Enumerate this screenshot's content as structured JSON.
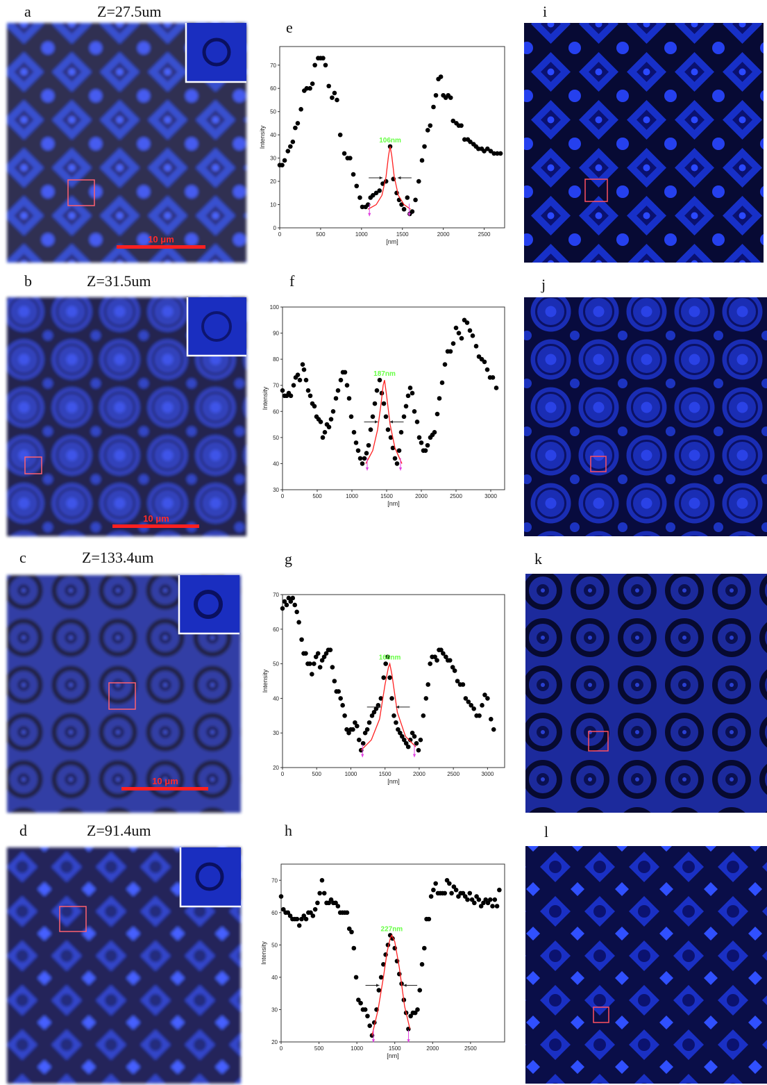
{
  "image_panels": [
    {
      "label": "a",
      "z": "Z=27.5um",
      "scale_bar": "10 μm"
    },
    {
      "label": "b",
      "z": "Z=31.5um",
      "scale_bar": "10 μm"
    },
    {
      "label": "c",
      "z": "Z=133.4um",
      "scale_bar": "10 μm"
    },
    {
      "label": "d",
      "z": "Z=91.4um"
    },
    {
      "label": "i"
    },
    {
      "label": "j"
    },
    {
      "label": "k"
    },
    {
      "label": "l"
    }
  ],
  "chart_data": [
    {
      "type": "scatter",
      "label": "e",
      "annotation": "106nm",
      "x_label": "[nm]",
      "y_label": "Intensity",
      "xlim": [
        0,
        2750
      ],
      "xticks": [
        0,
        500,
        1000,
        1500,
        2000,
        2500
      ],
      "ylim": [
        0,
        78
      ],
      "yticks": [
        0,
        10,
        20,
        30,
        40,
        50,
        60,
        70
      ],
      "series": [
        {
          "color": "#000000",
          "x": [
            0,
            30,
            60,
            100,
            130,
            160,
            190,
            220,
            260,
            300,
            330,
            370,
            400,
            430,
            470,
            500,
            530,
            560,
            600,
            640,
            670,
            700,
            740,
            790,
            830,
            860,
            900,
            940,
            980,
            1010,
            1050,
            1080,
            1110,
            1140,
            1180,
            1220,
            1260,
            1300,
            1350,
            1390,
            1430,
            1460,
            1490,
            1520,
            1560,
            1590,
            1620,
            1660,
            1700,
            1740,
            1770,
            1810,
            1840,
            1880,
            1910,
            1940,
            1970,
            2000,
            2030,
            2060,
            2090,
            2120,
            2160,
            2190,
            2220,
            2260,
            2300,
            2330,
            2370,
            2400,
            2430,
            2470,
            2500,
            2540,
            2580,
            2620,
            2660,
            2700
          ],
          "values": [
            27,
            27,
            29,
            33,
            35,
            37,
            43,
            45,
            51,
            59,
            60,
            60,
            62,
            70,
            73,
            73,
            73,
            70,
            61,
            56,
            58,
            55,
            40,
            32,
            30,
            30,
            23,
            18,
            13,
            9,
            9,
            10,
            13,
            14,
            15,
            16,
            19,
            20,
            35,
            21,
            15,
            12,
            10,
            8,
            13,
            6,
            7,
            12,
            20,
            29,
            35,
            42,
            44,
            52,
            57,
            64,
            65,
            57,
            56,
            57,
            56,
            46,
            45,
            44,
            44,
            38,
            38,
            37,
            36,
            35,
            34,
            34,
            33,
            34,
            33,
            32,
            32,
            32
          ]
        },
        {
          "color": "#ff2020",
          "line": true,
          "x": [
            1080,
            1180,
            1250,
            1300,
            1330,
            1350,
            1370,
            1400,
            1450,
            1520,
            1600
          ],
          "values": [
            8,
            10,
            14,
            22,
            31,
            35,
            31,
            22,
            14,
            10,
            8
          ]
        }
      ]
    },
    {
      "type": "scatter",
      "label": "f",
      "annotation": "187nm",
      "x_label": "[nm]",
      "y_label": "Intensity",
      "xlim": [
        0,
        3200
      ],
      "xticks": [
        0,
        500,
        1000,
        1500,
        2000,
        2500,
        3000
      ],
      "ylim": [
        30,
        100
      ],
      "yticks": [
        30,
        40,
        50,
        60,
        70,
        80,
        90,
        100
      ],
      "series": [
        {
          "color": "#000000",
          "x": [
            0,
            30,
            60,
            90,
            120,
            160,
            190,
            220,
            250,
            290,
            310,
            340,
            370,
            400,
            430,
            460,
            490,
            520,
            550,
            580,
            610,
            640,
            670,
            700,
            730,
            770,
            800,
            840,
            870,
            900,
            930,
            960,
            990,
            1030,
            1060,
            1090,
            1120,
            1150,
            1180,
            1210,
            1240,
            1270,
            1300,
            1330,
            1360,
            1400,
            1430,
            1460,
            1490,
            1520,
            1560,
            1590,
            1620,
            1650,
            1680,
            1710,
            1750,
            1780,
            1810,
            1840,
            1870,
            1900,
            1940,
            1970,
            2000,
            2030,
            2060,
            2090,
            2130,
            2160,
            2190,
            2230,
            2260,
            2300,
            2340,
            2380,
            2420,
            2460,
            2500,
            2540,
            2580,
            2620,
            2660,
            2700,
            2740,
            2790,
            2830,
            2870,
            2910,
            2950,
            2990,
            3030,
            3080
          ],
          "values": [
            68,
            66,
            66,
            67,
            66,
            70,
            73,
            74,
            72,
            78,
            76,
            72,
            68,
            66,
            63,
            62,
            58,
            57,
            56,
            50,
            52,
            55,
            54,
            57,
            60,
            65,
            68,
            72,
            75,
            75,
            70,
            65,
            58,
            52,
            48,
            45,
            42,
            40,
            42,
            44,
            47,
            53,
            58,
            63,
            68,
            72,
            67,
            63,
            58,
            53,
            50,
            46,
            42,
            40,
            45,
            52,
            58,
            62,
            66,
            69,
            67,
            60,
            56,
            50,
            48,
            45,
            45,
            47,
            50,
            51,
            52,
            59,
            65,
            71,
            78,
            83,
            83,
            86,
            92,
            90,
            88,
            95,
            94,
            91,
            89,
            85,
            81,
            80,
            79,
            76,
            73,
            73,
            69
          ]
        },
        {
          "color": "#ff2020",
          "line": true,
          "x": [
            1200,
            1300,
            1370,
            1420,
            1450,
            1470,
            1500,
            1550,
            1620,
            1720
          ],
          "values": [
            40,
            45,
            53,
            63,
            70,
            72,
            66,
            55,
            46,
            40
          ]
        }
      ]
    },
    {
      "type": "scatter",
      "label": "g",
      "annotation": "166nm",
      "x_label": "[nm]",
      "y_label": "Intensity",
      "xlim": [
        0,
        3250
      ],
      "xticks": [
        0,
        500,
        1000,
        1500,
        2000,
        2500,
        3000
      ],
      "ylim": [
        20,
        70
      ],
      "yticks": [
        20,
        30,
        40,
        50,
        60,
        70
      ],
      "series": [
        {
          "color": "#000000",
          "x": [
            0,
            30,
            60,
            90,
            120,
            150,
            180,
            210,
            240,
            280,
            310,
            340,
            370,
            400,
            430,
            460,
            490,
            520,
            550,
            580,
            610,
            640,
            670,
            700,
            730,
            760,
            790,
            820,
            850,
            880,
            910,
            940,
            970,
            1000,
            1030,
            1060,
            1090,
            1120,
            1150,
            1180,
            1210,
            1240,
            1270,
            1310,
            1340,
            1370,
            1400,
            1440,
            1480,
            1510,
            1540,
            1570,
            1600,
            1630,
            1660,
            1690,
            1720,
            1750,
            1780,
            1810,
            1840,
            1870,
            1900,
            1930,
            1960,
            1990,
            2020,
            2060,
            2100,
            2130,
            2160,
            2190,
            2230,
            2260,
            2290,
            2320,
            2350,
            2390,
            2420,
            2450,
            2490,
            2520,
            2560,
            2600,
            2640,
            2680,
            2720,
            2760,
            2800,
            2840,
            2880,
            2920,
            2960,
            3000,
            3050,
            3090
          ],
          "values": [
            66,
            68,
            67,
            69,
            68,
            69,
            67,
            65,
            62,
            57,
            53,
            53,
            50,
            50,
            47,
            50,
            52,
            53,
            49,
            51,
            52,
            53,
            54,
            54,
            49,
            45,
            42,
            42,
            40,
            38,
            35,
            31,
            30,
            31,
            31,
            33,
            32,
            28,
            25,
            27,
            30,
            31,
            33,
            35,
            36,
            37,
            38,
            40,
            46,
            50,
            52,
            46,
            40,
            35,
            33,
            31,
            30,
            29,
            28,
            27,
            26,
            28,
            30,
            29,
            27,
            25,
            28,
            35,
            40,
            44,
            50,
            52,
            52,
            51,
            54,
            54,
            53,
            52,
            51,
            51,
            49,
            48,
            45,
            44,
            44,
            40,
            39,
            38,
            37,
            35,
            35,
            38,
            41,
            40,
            34,
            31
          ]
        },
        {
          "color": "#ff2020",
          "line": true,
          "x": [
            1150,
            1300,
            1420,
            1500,
            1550,
            1570,
            1600,
            1680,
            1800,
            1950
          ],
          "values": [
            25,
            28,
            34,
            44,
            49,
            50,
            47,
            36,
            29,
            26
          ]
        }
      ]
    },
    {
      "type": "scatter",
      "label": "h",
      "annotation": "227nm",
      "x_label": "[nm]",
      "y_label": "Intensity",
      "xlim": [
        0,
        2950
      ],
      "xticks": [
        0,
        500,
        1000,
        1500,
        2000,
        2500
      ],
      "ylim": [
        20,
        75
      ],
      "yticks": [
        20,
        30,
        40,
        50,
        60,
        70
      ],
      "series": [
        {
          "color": "#000000",
          "x": [
            0,
            30,
            60,
            90,
            120,
            150,
            180,
            210,
            240,
            270,
            300,
            330,
            360,
            390,
            420,
            450,
            480,
            510,
            540,
            570,
            600,
            630,
            660,
            690,
            720,
            750,
            780,
            810,
            840,
            870,
            900,
            930,
            960,
            990,
            1020,
            1050,
            1080,
            1110,
            1140,
            1170,
            1200,
            1230,
            1260,
            1290,
            1320,
            1350,
            1380,
            1410,
            1440,
            1470,
            1500,
            1530,
            1560,
            1590,
            1620,
            1650,
            1680,
            1710,
            1740,
            1770,
            1800,
            1830,
            1860,
            1890,
            1920,
            1950,
            1980,
            2010,
            2040,
            2070,
            2100,
            2130,
            2160,
            2190,
            2220,
            2250,
            2280,
            2310,
            2340,
            2370,
            2400,
            2430,
            2460,
            2490,
            2520,
            2550,
            2580,
            2610,
            2640,
            2670,
            2700,
            2730,
            2760,
            2790,
            2820,
            2850,
            2880
          ],
          "values": [
            65,
            61,
            60,
            60,
            59,
            58,
            58,
            58,
            56,
            58,
            59,
            58,
            60,
            60,
            59,
            61,
            63,
            66,
            70,
            66,
            63,
            63,
            64,
            63,
            63,
            62,
            60,
            60,
            60,
            60,
            55,
            54,
            49,
            40,
            33,
            32,
            30,
            30,
            28,
            25,
            22,
            26,
            30,
            36,
            40,
            44,
            47,
            50,
            53,
            52,
            49,
            45,
            41,
            38,
            33,
            29,
            24,
            28,
            29,
            29,
            30,
            36,
            44,
            49,
            58,
            58,
            65,
            67,
            69,
            66,
            66,
            66,
            66,
            70,
            69,
            66,
            68,
            67,
            65,
            66,
            66,
            65,
            64,
            66,
            64,
            63,
            65,
            64,
            62,
            63,
            64,
            63,
            64,
            62,
            64,
            62,
            67
          ]
        },
        {
          "color": "#ff2020",
          "line": true,
          "x": [
            1200,
            1280,
            1350,
            1400,
            1440,
            1460,
            1500,
            1560,
            1630,
            1700
          ],
          "values": [
            22,
            30,
            40,
            48,
            52,
            53,
            51,
            43,
            31,
            24
          ]
        }
      ]
    }
  ]
}
